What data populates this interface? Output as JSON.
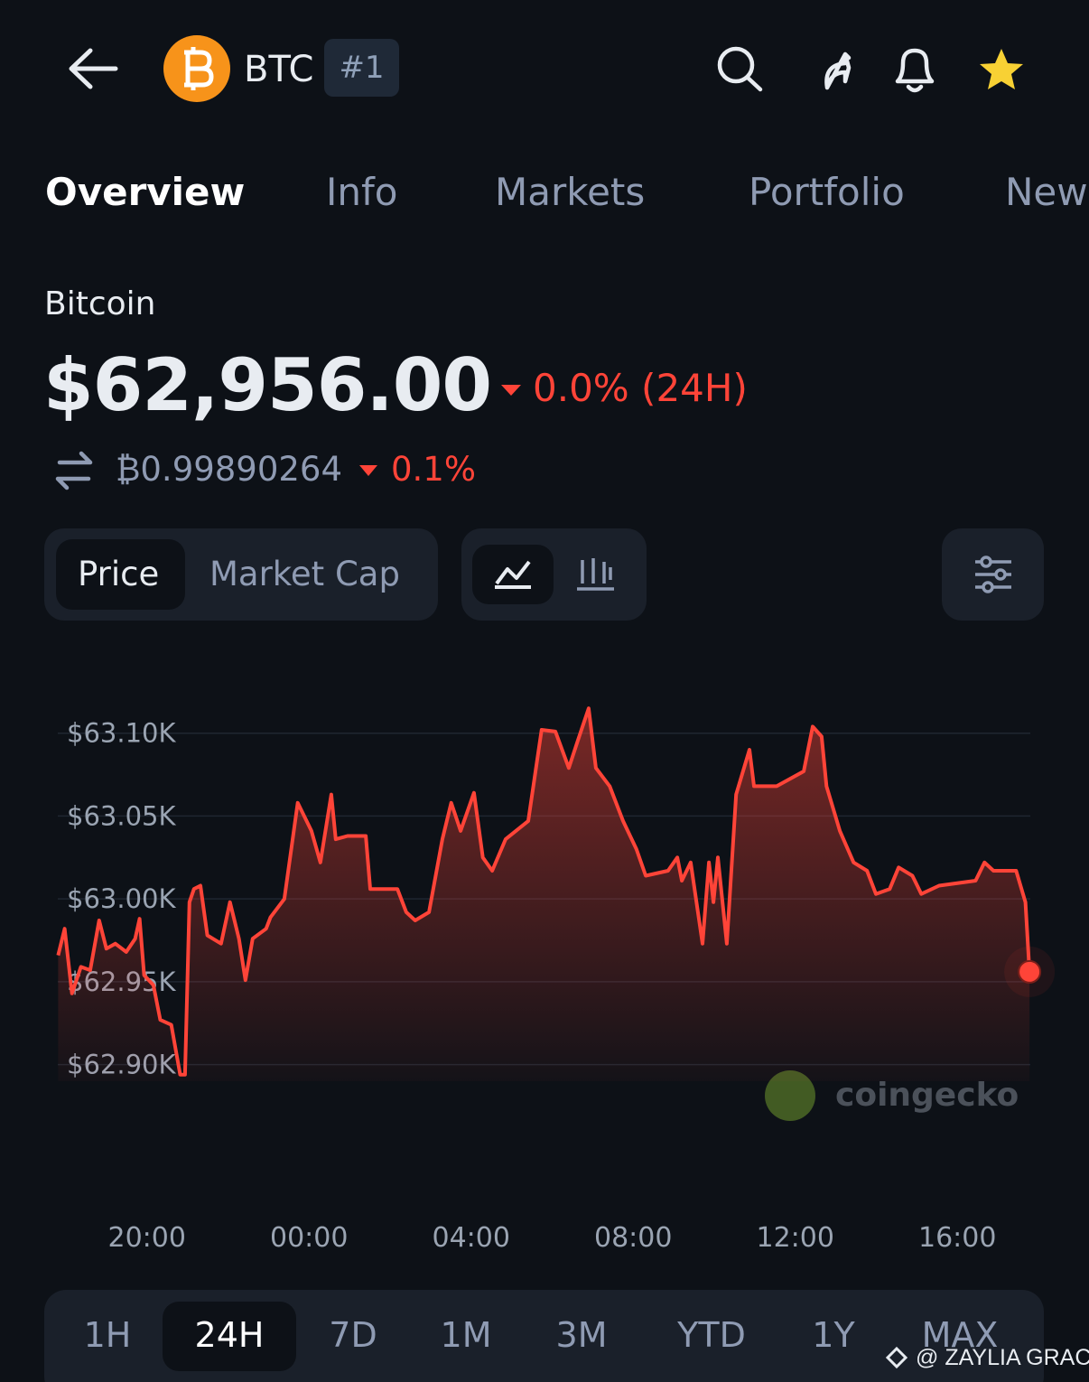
{
  "header": {
    "symbol": "BTC",
    "rank": "#1"
  },
  "tabs": [
    "Overview",
    "Info",
    "Markets",
    "Portfolio",
    "New"
  ],
  "coin": {
    "name": "Bitcoin",
    "price": "$62,956.00",
    "change": "0.0% (24H)",
    "btc_price": "₿0.99890264",
    "btc_change": "0.1%"
  },
  "toggles": [
    "Price",
    "Market Cap"
  ],
  "chart_data": {
    "type": "line",
    "color": "#ff4438",
    "grid": true,
    "xlim": [
      17.8,
      41.8
    ],
    "xticks": [
      {
        "value": 20,
        "label": "20:00"
      },
      {
        "value": 24,
        "label": "00:00"
      },
      {
        "value": 28,
        "label": "04:00"
      },
      {
        "value": 32,
        "label": "08:00"
      },
      {
        "value": 36,
        "label": "12:00"
      },
      {
        "value": 40,
        "label": "16:00"
      }
    ],
    "ylim": [
      62890,
      63120
    ],
    "yticks": [
      {
        "value": 62900,
        "label": "$62.90K"
      },
      {
        "value": 62950,
        "label": "$62.95K"
      },
      {
        "value": 63000,
        "label": "$63.00K"
      },
      {
        "value": 63050,
        "label": "$63.05K"
      },
      {
        "value": 63100,
        "label": "$63.10K"
      }
    ],
    "x": [
      17.81,
      17.97,
      18.15,
      18.37,
      18.6,
      18.82,
      19.0,
      19.22,
      19.49,
      19.71,
      19.82,
      19.93,
      20.16,
      20.33,
      20.6,
      20.82,
      20.94,
      21.05,
      21.16,
      21.32,
      21.49,
      21.83,
      22.05,
      22.27,
      22.43,
      22.61,
      22.94,
      23.05,
      23.39,
      23.72,
      24.06,
      24.28,
      24.55,
      24.66,
      24.95,
      25.4,
      25.51,
      26.18,
      26.4,
      26.62,
      26.96,
      27.29,
      27.51,
      27.74,
      28.07,
      28.29,
      28.52,
      28.85,
      29.41,
      29.74,
      30.08,
      30.41,
      30.64,
      30.9,
      31.08,
      31.42,
      31.75,
      32.08,
      32.31,
      32.86,
      33.09,
      33.2,
      33.42,
      33.71,
      33.87,
      33.98,
      34.09,
      34.31,
      34.54,
      34.87,
      34.98,
      35.54,
      36.21,
      36.43,
      36.65,
      36.77,
      37.1,
      37.44,
      37.77,
      37.99,
      38.33,
      38.55,
      38.89,
      39.11,
      39.55,
      40.45,
      40.67,
      40.89,
      41.45,
      41.68,
      41.78
    ],
    "values": [
      62966,
      62982,
      62943,
      62959,
      62957,
      62987,
      62970,
      62973,
      62968,
      62976,
      62988,
      62954,
      62948,
      62927,
      62924,
      62894,
      62894,
      62998,
      63006,
      63008,
      62978,
      62973,
      62998,
      62976,
      62951,
      62976,
      62982,
      62989,
      63000,
      63058,
      63041,
      63022,
      63063,
      63036,
      63038,
      63038,
      63006,
      63006,
      62992,
      62987,
      62992,
      63036,
      63058,
      63041,
      63064,
      63025,
      63017,
      63036,
      63047,
      63102,
      63101,
      63079,
      63096,
      63115,
      63079,
      63068,
      63047,
      63030,
      63014,
      63017,
      63025,
      63011,
      63022,
      62973,
      63022,
      62998,
      63025,
      62973,
      63063,
      63090,
      63068,
      63068,
      63077,
      63104,
      63098,
      63068,
      63041,
      63022,
      63017,
      63003,
      63006,
      63019,
      63014,
      63003,
      63008,
      63011,
      63022,
      63017,
      63017,
      62998,
      62956
    ]
  },
  "watermark": "coingecko",
  "ranges": [
    "1H",
    "24H",
    "7D",
    "1M",
    "3M",
    "YTD",
    "1Y",
    "MAX"
  ],
  "credit": "@ ZAYLIA GRACE"
}
